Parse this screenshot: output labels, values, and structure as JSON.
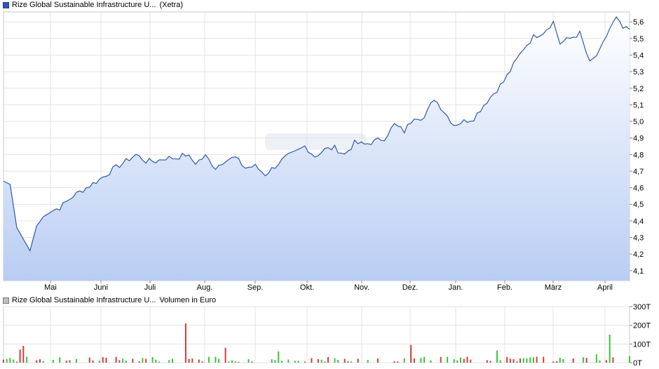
{
  "legends": {
    "price": {
      "name": "Rize Global Sustainable Infrastructure U...",
      "exchange": "(Xetra)",
      "color": "#2f59b0"
    },
    "volume": {
      "name": "Rize Global Sustainable Infrastructure U...",
      "label": "Volumen in Euro",
      "color": "#bfbfbf"
    }
  },
  "chart_data": [
    {
      "type": "area",
      "series": [
        {
          "name": "Rize Global Sustainable Infrastructure U...",
          "color": "#2f59b0"
        }
      ],
      "y_ticks": [
        "4,1",
        "4,2",
        "4,3",
        "4,4",
        "4,5",
        "4,6",
        "4,7",
        "4,8",
        "4,9",
        "5,0",
        "5,1",
        "5,2",
        "5,3",
        "5,4",
        "5,5",
        "5,6"
      ],
      "ylim": [
        4.04,
        5.66
      ],
      "x_ticks": [
        "Mai",
        "Juni",
        "Juli",
        "Aug.",
        "Sep.",
        "Okt.",
        "Nov.",
        "Dez.",
        "Jan.",
        "Feb.",
        "März",
        "April"
      ],
      "grid": true,
      "keypoints": [
        [
          0,
          4.64
        ],
        [
          2,
          4.62
        ],
        [
          4,
          4.36
        ],
        [
          6,
          4.29
        ],
        [
          8,
          4.22
        ],
        [
          10,
          4.37
        ],
        [
          13,
          4.45
        ],
        [
          17,
          4.48
        ],
        [
          21,
          4.55
        ],
        [
          25,
          4.6
        ],
        [
          29,
          4.65
        ],
        [
          33,
          4.71
        ],
        [
          37,
          4.76
        ],
        [
          40,
          4.8
        ],
        [
          43,
          4.76
        ],
        [
          46,
          4.76
        ],
        [
          49,
          4.78
        ],
        [
          52,
          4.78
        ],
        [
          55,
          4.8
        ],
        [
          58,
          4.75
        ],
        [
          61,
          4.79
        ],
        [
          64,
          4.72
        ],
        [
          67,
          4.77
        ],
        [
          70,
          4.78
        ],
        [
          73,
          4.72
        ],
        [
          76,
          4.73
        ],
        [
          79,
          4.68
        ],
        [
          82,
          4.73
        ],
        [
          85,
          4.78
        ],
        [
          88,
          4.81
        ],
        [
          91,
          4.85
        ],
        [
          94,
          4.79
        ],
        [
          97,
          4.83
        ],
        [
          100,
          4.84
        ],
        [
          103,
          4.8
        ],
        [
          106,
          4.87
        ],
        [
          109,
          4.86
        ],
        [
          112,
          4.88
        ],
        [
          115,
          4.9
        ],
        [
          118,
          4.98
        ],
        [
          121,
          4.94
        ],
        [
          124,
          5.03
        ],
        [
          127,
          5.02
        ],
        [
          130,
          5.14
        ],
        [
          133,
          5.06
        ],
        [
          136,
          4.98
        ],
        [
          139,
          5.0
        ],
        [
          142,
          5.02
        ],
        [
          145,
          5.1
        ],
        [
          148,
          5.17
        ],
        [
          151,
          5.24
        ],
        [
          154,
          5.34
        ],
        [
          157,
          5.44
        ],
        [
          160,
          5.51
        ],
        [
          163,
          5.54
        ],
        [
          166,
          5.6
        ],
        [
          168,
          5.47
        ],
        [
          171,
          5.5
        ],
        [
          174,
          5.53
        ],
        [
          177,
          5.35
        ],
        [
          180,
          5.42
        ],
        [
          183,
          5.56
        ],
        [
          185,
          5.62
        ],
        [
          187,
          5.56
        ],
        [
          189,
          5.55
        ]
      ]
    },
    {
      "type": "bar",
      "name": "Volumen in Euro",
      "y_ticks": [
        "0T",
        "100T",
        "200T",
        "300T"
      ],
      "ylim": [
        0,
        300
      ],
      "x_ticks": [
        "Mai",
        "Juni",
        "Juli",
        "Aug.",
        "Sep.",
        "Okt.",
        "Nov.",
        "Dez.",
        "Jan.",
        "Feb.",
        "März",
        "April"
      ],
      "colors": {
        "up": "#3ac43a",
        "down": "#d23c3c"
      },
      "large_bars": [
        [
          5,
          70,
          "down"
        ],
        [
          6,
          90,
          "down"
        ],
        [
          55,
          210,
          "down"
        ],
        [
          67,
          80,
          "down"
        ],
        [
          83,
          60,
          "green"
        ],
        [
          123,
          95,
          "down"
        ],
        [
          149,
          65,
          "green"
        ],
        [
          179,
          45,
          "green"
        ],
        [
          183,
          150,
          "green"
        ],
        [
          189,
          35,
          "green"
        ]
      ]
    }
  ]
}
